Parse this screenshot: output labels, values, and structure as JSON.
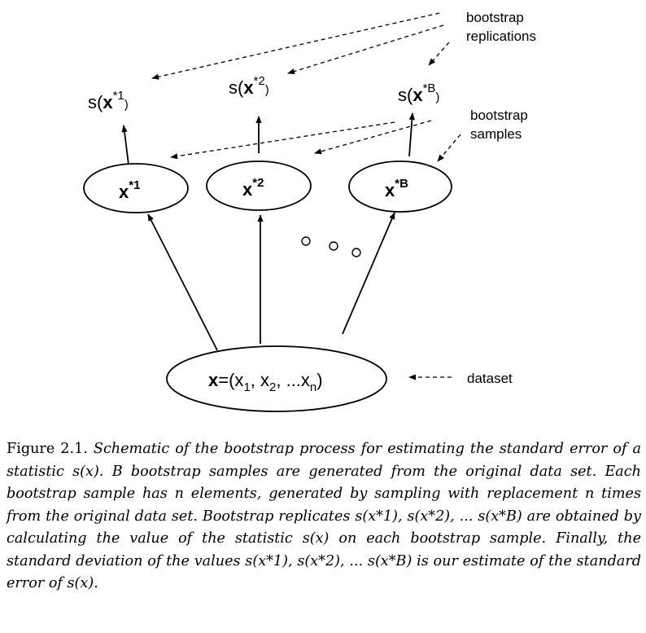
{
  "diagram": {
    "annotations": {
      "replications_line1": "bootstrap",
      "replications_line2": "replications",
      "samples_line1": "bootstrap",
      "samples_line2": "samples",
      "dataset": "dataset"
    },
    "statistics": [
      {
        "prefix": "s(",
        "var": "x",
        "sup": "*1",
        "suffix": ")"
      },
      {
        "prefix": "s(",
        "var": "x",
        "sup": "*2",
        "suffix": ")"
      },
      {
        "prefix": "s(",
        "var": "x",
        "sup": "*B",
        "suffix": ")"
      }
    ],
    "samples": [
      {
        "var": "x",
        "sup": "*1"
      },
      {
        "var": "x",
        "sup": "*2"
      },
      {
        "var": "x",
        "sup": "*B"
      }
    ],
    "dataset_node": {
      "var": "x",
      "eq": "=(x",
      "s1": "1",
      "mid1": ", x",
      "s2": "2",
      "mid2": ", ...x",
      "sn": "n",
      "close": ")"
    }
  },
  "caption": {
    "label": "Figure 2.1.",
    "text": "Schematic of the bootstrap process for estimating the standard error of a statistic s(x). B bootstrap samples are generated from the original data set. Each bootstrap sample has n elements, generated by sampling with replacement n times from the original data set. Bootstrap replicates s(x*1), s(x*2), ... s(x*B) are obtained by calculating the value of the statistic s(x) on each bootstrap sample. Finally, the standard deviation of the values s(x*1), s(x*2), ... s(x*B) is our estimate of the standard error of s(x)."
  }
}
